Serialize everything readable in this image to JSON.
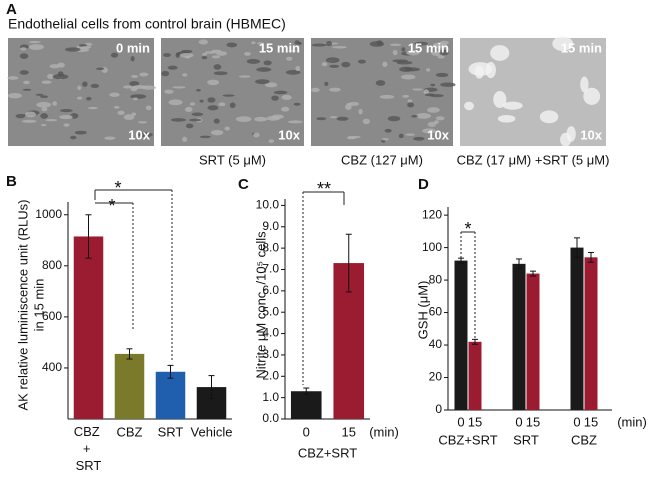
{
  "panel_labels": [
    "A",
    "B",
    "C",
    "D"
  ],
  "panel_a": {
    "title": "Endothelial cells from control brain (HBMEC)",
    "images": [
      {
        "time": "0 min",
        "magnification": "10x"
      },
      {
        "time": "15 min",
        "magnification": "10x",
        "caption": "SRT (5 μM)"
      },
      {
        "time": "15 min",
        "magnification": "10x",
        "caption": "CBZ (127 μM)"
      },
      {
        "time": "15 min",
        "magnification": "10x",
        "caption": "CBZ (17 μM) +SRT (5 μM)"
      }
    ]
  },
  "chart_data": [
    {
      "type": "bar",
      "ylabel": [
        "AK relative luminiscence unit (RLUs)",
        "in 15 min"
      ],
      "categories": [
        "CBZ + SRT",
        "CBZ",
        "SRT",
        "Vehicle"
      ],
      "values": [
        915,
        455,
        385,
        325
      ],
      "errors": [
        85,
        20,
        25,
        45
      ],
      "colors": [
        "#9b1b30",
        "#7a7a2a",
        "#1f5fae",
        "#1a1a1a"
      ],
      "ylim": [
        200,
        1050
      ],
      "yticks": [
        400,
        600,
        800,
        1000
      ],
      "annotations": [
        "*",
        "*"
      ]
    },
    {
      "type": "bar",
      "ylabel": "Nitrite μM conc. /10⁵ cells",
      "categories": [
        "0",
        "15"
      ],
      "xunit": "(min)",
      "xlabel": "CBZ+SRT",
      "values": [
        1.3,
        7.3
      ],
      "errors": [
        0.15,
        1.35
      ],
      "colors": [
        "#1a1a1a",
        "#9b1b30"
      ],
      "ylim": [
        0,
        10.3
      ],
      "yticks": [
        {
          "value": 0,
          "label": "0.0"
        },
        {
          "value": 1,
          "label": "1.0"
        },
        {
          "value": 2,
          "label": "2.0"
        },
        {
          "value": 3,
          "label": "3.0"
        },
        {
          "value": 4,
          "label": "4.0"
        },
        {
          "value": 5,
          "label": "5.0"
        },
        {
          "value": 6,
          "label": "6.0"
        },
        {
          "value": 7,
          "label": "7.0"
        },
        {
          "value": 8,
          "label": "8.0"
        },
        {
          "value": 9,
          "label": "9.0"
        },
        {
          "value": 10,
          "label": "10.0"
        }
      ],
      "annotations": [
        "**"
      ]
    },
    {
      "type": "grouped_bar",
      "ylabel": "GSH (μM)",
      "categories": [
        "CBZ+SRT",
        "SRT",
        "CBZ"
      ],
      "xunit": "(min)",
      "series": [
        {
          "name": "0",
          "color": "#1a1a1a",
          "values": [
            92,
            90,
            100
          ],
          "errors": [
            1.5,
            3,
            6
          ]
        },
        {
          "name": "15",
          "color": "#9b1b30",
          "values": [
            42,
            84,
            94
          ],
          "errors": [
            1.5,
            1.5,
            3
          ]
        }
      ],
      "ylim": [
        0,
        125
      ],
      "yticks": [
        0,
        20,
        40,
        60,
        80,
        100,
        120
      ],
      "annotations": [
        "*"
      ]
    }
  ]
}
